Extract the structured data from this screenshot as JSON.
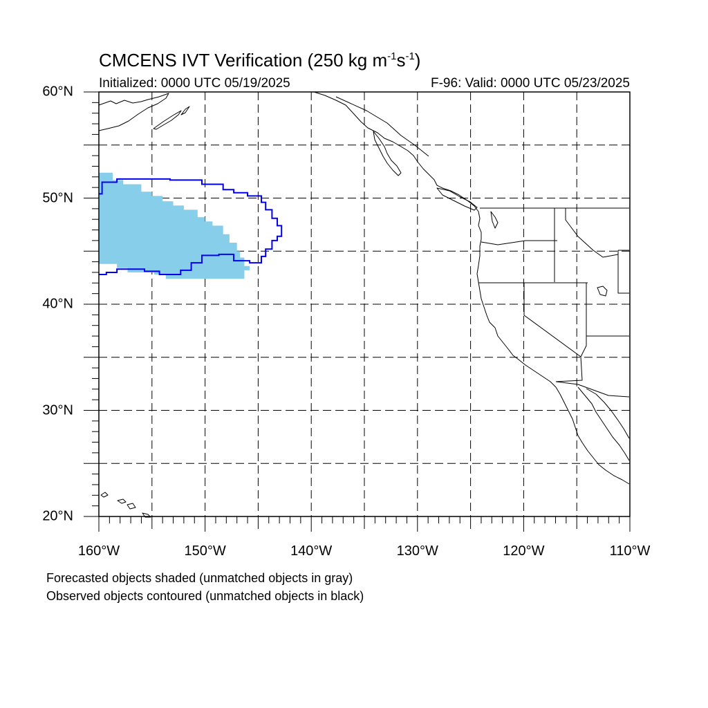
{
  "title": {
    "prefix": "CMCENS IVT Verification (250 kg m",
    "sup1": "-1",
    "mid": "s",
    "sup2": "-1",
    "suffix": ")"
  },
  "initialized": "Initialized: 0000 UTC 05/19/2025",
  "valid": "F-96: Valid: 0000 UTC 05/23/2025",
  "notes": [
    "Forecasted objects shaded (unmatched objects in gray)",
    "Observed objects contoured (unmatched objects in black)"
  ],
  "axes": {
    "lon_range": [
      -160,
      -110
    ],
    "lat_range": [
      20,
      60
    ],
    "lat_labels": [
      {
        "value": 60,
        "text": "60°N"
      },
      {
        "value": 50,
        "text": "50°N"
      },
      {
        "value": 40,
        "text": "40°N"
      },
      {
        "value": 30,
        "text": "30°N"
      },
      {
        "value": 20,
        "text": "20°N"
      }
    ],
    "lon_labels": [
      {
        "value": -160,
        "text": "160°W"
      },
      {
        "value": -150,
        "text": "150°W"
      },
      {
        "value": -140,
        "text": "140°W"
      },
      {
        "value": -130,
        "text": "130°W"
      },
      {
        "value": -120,
        "text": "120°W"
      },
      {
        "value": -110,
        "text": "110°W"
      }
    ],
    "grid": "dashed, every 5 degrees"
  },
  "colors": {
    "forecast_fill": "#87ceeb",
    "observed_contour": "#0000ee",
    "coastline": "#000000"
  },
  "objects": {
    "forecast_shaded": {
      "label": "matched forecast object",
      "outline_lonlat": [
        [
          -160,
          52.4
        ],
        [
          -158.7,
          52.4
        ],
        [
          -158.7,
          51.7
        ],
        [
          -157.7,
          51.7
        ],
        [
          -157.7,
          51.3
        ],
        [
          -156,
          51.3
        ],
        [
          -156,
          50.6
        ],
        [
          -155,
          50.6
        ],
        [
          -155,
          50.2
        ],
        [
          -154,
          50.2
        ],
        [
          -154,
          49.7
        ],
        [
          -153,
          49.7
        ],
        [
          -153,
          49.3
        ],
        [
          -152,
          49.3
        ],
        [
          -152,
          48.9
        ],
        [
          -150.7,
          48.9
        ],
        [
          -150.7,
          48.2
        ],
        [
          -150,
          48.2
        ],
        [
          -150,
          47.8
        ],
        [
          -149.3,
          47.8
        ],
        [
          -149.3,
          47.4
        ],
        [
          -148.3,
          47.4
        ],
        [
          -148.3,
          46.6
        ],
        [
          -147.7,
          46.6
        ],
        [
          -147.7,
          45.8
        ],
        [
          -147,
          45.8
        ],
        [
          -147,
          45
        ],
        [
          -146.7,
          45
        ],
        [
          -146.7,
          44.4
        ],
        [
          -146.3,
          44.4
        ],
        [
          -146.3,
          43.6
        ],
        [
          -145.8,
          43.6
        ],
        [
          -145.8,
          43.2
        ],
        [
          -146.3,
          43.2
        ],
        [
          -146.3,
          42.4
        ],
        [
          -153.7,
          42.4
        ],
        [
          -153.7,
          42.8
        ],
        [
          -154.8,
          42.8
        ],
        [
          -154.8,
          43
        ],
        [
          -157.3,
          43
        ],
        [
          -157.3,
          43.4
        ],
        [
          -158.3,
          43.4
        ],
        [
          -158.3,
          43.8
        ],
        [
          -160,
          43.8
        ]
      ]
    },
    "observed_contour": {
      "label": "matched observed object",
      "outline_lonlat": [
        [
          -160,
          50.4
        ],
        [
          -159.7,
          50.4
        ],
        [
          -159.7,
          51.5
        ],
        [
          -158.3,
          51.5
        ],
        [
          -158.3,
          51.8
        ],
        [
          -153.3,
          51.8
        ],
        [
          -153.3,
          51.7
        ],
        [
          -150.3,
          51.7
        ],
        [
          -150.3,
          51.3
        ],
        [
          -148.3,
          51.3
        ],
        [
          -148.3,
          50.8
        ],
        [
          -147.3,
          50.8
        ],
        [
          -147.3,
          50.5
        ],
        [
          -146,
          50.5
        ],
        [
          -146,
          50.2
        ],
        [
          -144.7,
          50.2
        ],
        [
          -144.7,
          49.6
        ],
        [
          -144.3,
          49.6
        ],
        [
          -144.3,
          48.9
        ],
        [
          -143.7,
          48.9
        ],
        [
          -143.7,
          48.1
        ],
        [
          -143.2,
          48.1
        ],
        [
          -143.2,
          47.4
        ],
        [
          -142.8,
          47.4
        ],
        [
          -142.8,
          46.4
        ],
        [
          -143.2,
          46.4
        ],
        [
          -143.2,
          46
        ],
        [
          -143.7,
          46
        ],
        [
          -143.7,
          45.2
        ],
        [
          -144.3,
          45.2
        ],
        [
          -144.3,
          44.5
        ],
        [
          -144.7,
          44.5
        ],
        [
          -144.7,
          43.9
        ],
        [
          -145.8,
          43.9
        ],
        [
          -145.8,
          44.1
        ],
        [
          -147.3,
          44.1
        ],
        [
          -147.3,
          44.7
        ],
        [
          -148.7,
          44.7
        ],
        [
          -148.7,
          44.6
        ],
        [
          -150.3,
          44.6
        ],
        [
          -150.3,
          43.9
        ],
        [
          -151.3,
          43.9
        ],
        [
          -151.3,
          43.2
        ],
        [
          -152.3,
          43.2
        ],
        [
          -152.3,
          42.8
        ],
        [
          -154.3,
          42.8
        ],
        [
          -154.3,
          43.1
        ],
        [
          -155.7,
          43.1
        ],
        [
          -155.7,
          43.3
        ],
        [
          -158.3,
          43.3
        ],
        [
          -158.3,
          43
        ],
        [
          -159.3,
          43
        ],
        [
          -159.3,
          42.8
        ],
        [
          -160,
          42.8
        ]
      ]
    }
  }
}
